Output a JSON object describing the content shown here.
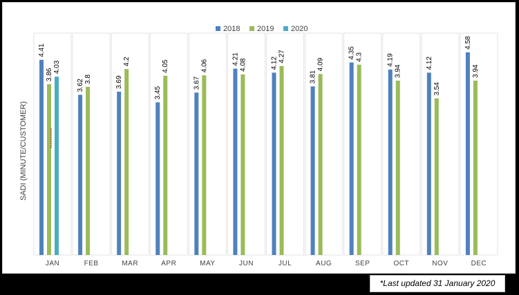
{
  "chart_data": {
    "type": "bar",
    "categories": [
      "JAN",
      "FEB",
      "MAR",
      "APR",
      "MAY",
      "JUN",
      "JUL",
      "AUG",
      "SEP",
      "OCT",
      "NOV",
      "DEC"
    ],
    "series": [
      {
        "name": "2018",
        "color": "#4f81bd",
        "values": [
          4.41,
          3.62,
          3.69,
          3.45,
          3.67,
          4.21,
          4.12,
          3.81,
          4.35,
          4.19,
          4.12,
          4.58
        ]
      },
      {
        "name": "2019",
        "color": "#9bbb59",
        "values": [
          3.86,
          3.8,
          4.2,
          4.05,
          4.06,
          4.08,
          4.27,
          4.09,
          4.3,
          3.94,
          3.54,
          3.94
        ]
      },
      {
        "name": "2020",
        "color": "#4bacc6",
        "values": [
          4.03,
          null,
          null,
          null,
          null,
          null,
          null,
          null,
          null,
          null,
          null,
          null
        ]
      }
    ],
    "ylabel": "SADI (MINUTE/CUSTOMER)",
    "xlabel": "",
    "ylim": [
      0,
      5
    ],
    "legend": "top-center",
    "grid": false
  },
  "footnote": "*Last updated 31 January 2020"
}
